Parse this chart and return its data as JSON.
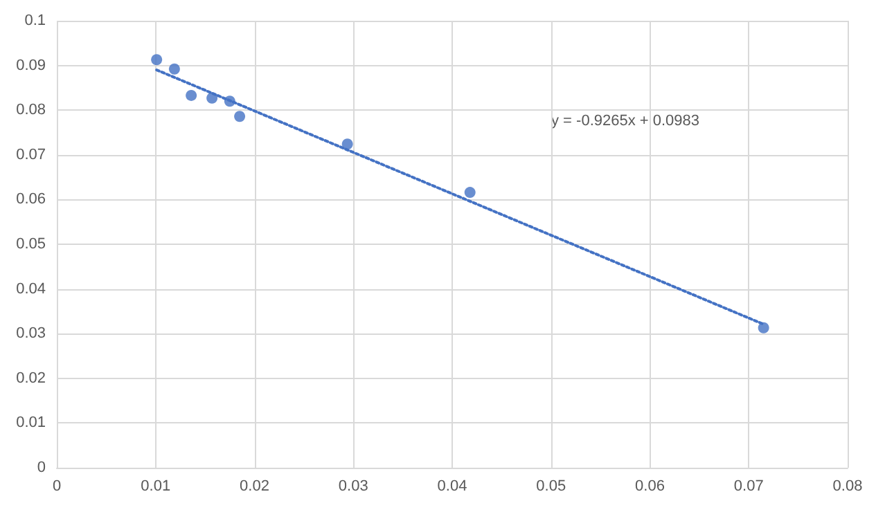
{
  "chart_data": {
    "type": "scatter",
    "marker": "circle",
    "grid": true,
    "xlim": [
      0,
      0.08
    ],
    "xticks": [
      0,
      0.01,
      0.02,
      0.03,
      0.04,
      0.05,
      0.06,
      0.07,
      0.08
    ],
    "ylim": [
      0,
      0.1
    ],
    "yticks": [
      0,
      0.01,
      0.02,
      0.03,
      0.04,
      0.05,
      0.06,
      0.07,
      0.08,
      0.09,
      0.1
    ],
    "series": [
      {
        "color": "#4472c4",
        "x": [
          0.0101,
          0.0119,
          0.0136,
          0.0157,
          0.0175,
          0.0185,
          0.0294,
          0.0418,
          0.0715
        ],
        "values": [
          0.0913,
          0.0892,
          0.0833,
          0.0827,
          0.082,
          0.0786,
          0.0724,
          0.0616,
          0.0313
        ]
      },
      {
        "type": "line",
        "color": "#4472c4",
        "line_style": "dotted",
        "marker": "none",
        "x": [
          0.0101,
          0.0715
        ],
        "values": [
          0.089,
          0.0321
        ]
      }
    ],
    "annotations": [
      "y = -0.9265x + 0.0983"
    ]
  }
}
